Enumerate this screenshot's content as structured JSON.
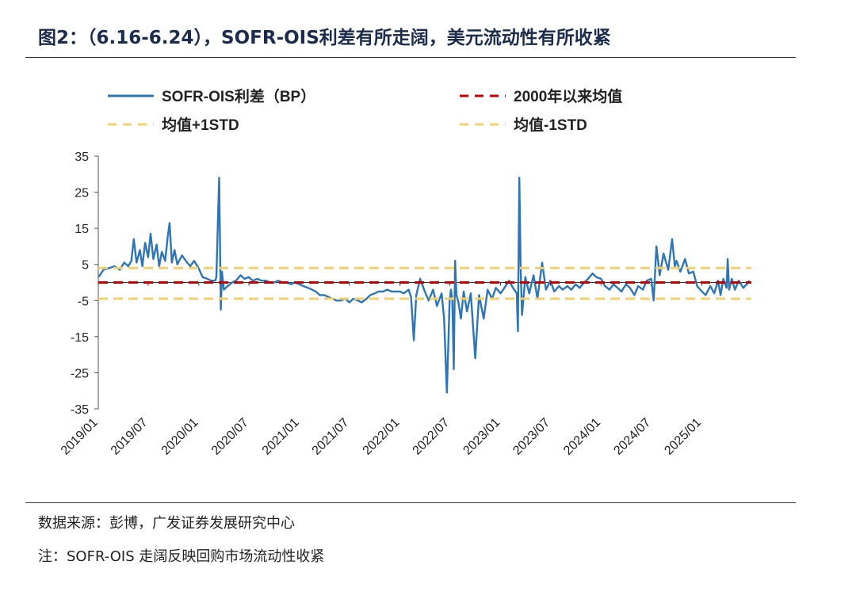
{
  "header": {
    "title": "图2：（6.16-6.24），SOFR-OIS利差有所走阔，美元流动性有所收紧"
  },
  "footer": {
    "source": "数据来源：彭博，广发证券发展研究中心",
    "note": "注：SOFR-OIS 走阔反映回购市场流动性收紧"
  },
  "chart_data": {
    "type": "line",
    "title": "",
    "xlabel": "",
    "ylabel": "",
    "ylim": [
      -35,
      35
    ],
    "yticks": [
      35,
      25,
      15,
      5,
      -5,
      -15,
      -25,
      -35
    ],
    "xticks": [
      "2019/01",
      "2019/07",
      "2020/01",
      "2020/07",
      "2021/01",
      "2021/07",
      "2022/01",
      "2022/07",
      "2023/01",
      "2023/07",
      "2024/01",
      "2024/07",
      "2025/01"
    ],
    "x_range": [
      "2019/01",
      "2025/06"
    ],
    "legend_position": "top",
    "grid": false,
    "series": [
      {
        "name": "SOFR-OIS利差（BP）",
        "style": "solid",
        "color": "#2e75b6",
        "points": [
          [
            "2019/01/02",
            1.5
          ],
          [
            "2019/01/20",
            3.5
          ],
          [
            "2019/02/10",
            4.0
          ],
          [
            "2019/03/01",
            4.5
          ],
          [
            "2019/03/20",
            3.5
          ],
          [
            "2019/04/05",
            5.5
          ],
          [
            "2019/04/20",
            4.5
          ],
          [
            "2019/05/01",
            6.0
          ],
          [
            "2019/05/10",
            12.0
          ],
          [
            "2019/05/20",
            5.5
          ],
          [
            "2019/06/01",
            9.0
          ],
          [
            "2019/06/10",
            4.5
          ],
          [
            "2019/06/20",
            11.0
          ],
          [
            "2019/07/01",
            7.0
          ],
          [
            "2019/07/10",
            13.5
          ],
          [
            "2019/07/20",
            6.5
          ],
          [
            "2019/08/01",
            10.5
          ],
          [
            "2019/08/10",
            4.5
          ],
          [
            "2019/08/20",
            8.5
          ],
          [
            "2019/09/01",
            6.0
          ],
          [
            "2019/09/10",
            12.5
          ],
          [
            "2019/09/17",
            16.5
          ],
          [
            "2019/09/25",
            5.5
          ],
          [
            "2019/10/05",
            9.0
          ],
          [
            "2019/10/15",
            5.0
          ],
          [
            "2019/11/01",
            7.5
          ],
          [
            "2019/11/15",
            6.0
          ],
          [
            "2019/12/01",
            4.5
          ],
          [
            "2019/12/15",
            6.0
          ],
          [
            "2019/12/31",
            4.0
          ],
          [
            "2020/01/15",
            1.5
          ],
          [
            "2020/02/01",
            1.0
          ],
          [
            "2020/02/15",
            0.5
          ],
          [
            "2020/03/01",
            0.5
          ],
          [
            "2020/03/05",
            1.5
          ],
          [
            "2020/03/10",
            16.0
          ],
          [
            "2020/03/15",
            29.0
          ],
          [
            "2020/03/18",
            12.0
          ],
          [
            "2020/03/21",
            -7.5
          ],
          [
            "2020/03/25",
            3.0
          ],
          [
            "2020/04/01",
            -2.0
          ],
          [
            "2020/04/15",
            -1.0
          ],
          [
            "2020/05/01",
            0.0
          ],
          [
            "2020/05/15",
            0.5
          ],
          [
            "2020/06/01",
            2.0
          ],
          [
            "2020/06/15",
            1.0
          ],
          [
            "2020/07/01",
            1.5
          ],
          [
            "2020/07/15",
            0.5
          ],
          [
            "2020/08/01",
            1.0
          ],
          [
            "2020/08/15",
            0.5
          ],
          [
            "2020/09/01",
            0.5
          ],
          [
            "2020/09/15",
            0.0
          ],
          [
            "2020/10/01",
            0.0
          ],
          [
            "2020/10/15",
            0.5
          ],
          [
            "2020/11/01",
            0.0
          ],
          [
            "2020/11/15",
            0.0
          ],
          [
            "2020/12/01",
            -0.5
          ],
          [
            "2020/12/15",
            0.0
          ],
          [
            "2021/01/01",
            -0.5
          ],
          [
            "2021/01/15",
            -1.0
          ],
          [
            "2021/02/01",
            -1.5
          ],
          [
            "2021/02/15",
            -2.0
          ],
          [
            "2021/03/01",
            -2.5
          ],
          [
            "2021/03/15",
            -3.5
          ],
          [
            "2021/04/01",
            -3.5
          ],
          [
            "2021/04/15",
            -4.0
          ],
          [
            "2021/05/01",
            -4.5
          ],
          [
            "2021/05/15",
            -5.0
          ],
          [
            "2021/06/01",
            -5.0
          ],
          [
            "2021/06/15",
            -4.5
          ],
          [
            "2021/07/01",
            -5.5
          ],
          [
            "2021/07/15",
            -4.5
          ],
          [
            "2021/08/01",
            -5.0
          ],
          [
            "2021/08/15",
            -5.5
          ],
          [
            "2021/09/01",
            -4.5
          ],
          [
            "2021/09/15",
            -3.5
          ],
          [
            "2021/10/01",
            -3.0
          ],
          [
            "2021/10/15",
            -2.5
          ],
          [
            "2021/11/01",
            -2.5
          ],
          [
            "2021/11/15",
            -2.0
          ],
          [
            "2021/12/01",
            -2.5
          ],
          [
            "2021/12/15",
            -2.5
          ],
          [
            "2022/01/01",
            -2.5
          ],
          [
            "2022/01/15",
            -3.0
          ],
          [
            "2022/02/01",
            -2.0
          ],
          [
            "2022/02/10",
            -4.0
          ],
          [
            "2022/02/20",
            -16.0
          ],
          [
            "2022/03/01",
            -3.5
          ],
          [
            "2022/03/15",
            1.0
          ],
          [
            "2022/04/01",
            -2.5
          ],
          [
            "2022/04/15",
            -5.0
          ],
          [
            "2022/05/01",
            -2.0
          ],
          [
            "2022/05/15",
            -6.5
          ],
          [
            "2022/06/01",
            -3.0
          ],
          [
            "2022/06/10",
            -10.0
          ],
          [
            "2022/06/20",
            -30.5
          ],
          [
            "2022/06/30",
            -5.0
          ],
          [
            "2022/07/05",
            -2.0
          ],
          [
            "2022/07/10",
            -5.0
          ],
          [
            "2022/07/15",
            -24.0
          ],
          [
            "2022/07/20",
            6.0
          ],
          [
            "2022/07/25",
            -3.5
          ],
          [
            "2022/08/01",
            -5.5
          ],
          [
            "2022/08/10",
            -10.0
          ],
          [
            "2022/08/20",
            -2.5
          ],
          [
            "2022/09/01",
            -8.0
          ],
          [
            "2022/09/15",
            -3.0
          ],
          [
            "2022/10/01",
            -21.0
          ],
          [
            "2022/10/15",
            -3.5
          ],
          [
            "2022/11/01",
            -10.0
          ],
          [
            "2022/11/15",
            -2.0
          ],
          [
            "2022/12/01",
            -4.5
          ],
          [
            "2022/12/15",
            -1.5
          ],
          [
            "2023/01/01",
            -3.0
          ],
          [
            "2023/01/15",
            -1.5
          ],
          [
            "2023/02/01",
            0.5
          ],
          [
            "2023/02/15",
            -1.5
          ],
          [
            "2023/03/01",
            -3.0
          ],
          [
            "2023/03/05",
            -13.5
          ],
          [
            "2023/03/10",
            29.0
          ],
          [
            "2023/03/15",
            4.0
          ],
          [
            "2023/03/20",
            -9.0
          ],
          [
            "2023/04/01",
            1.5
          ],
          [
            "2023/04/15",
            -3.0
          ],
          [
            "2023/05/01",
            2.0
          ],
          [
            "2023/05/15",
            -4.5
          ],
          [
            "2023/06/01",
            5.5
          ],
          [
            "2023/06/15",
            -2.0
          ],
          [
            "2023/07/01",
            0.5
          ],
          [
            "2023/07/15",
            -2.5
          ],
          [
            "2023/08/01",
            -1.0
          ],
          [
            "2023/08/15",
            -2.0
          ],
          [
            "2023/09/01",
            -1.0
          ],
          [
            "2023/09/15",
            -2.0
          ],
          [
            "2023/10/01",
            -0.5
          ],
          [
            "2023/10/15",
            -1.5
          ],
          [
            "2023/11/01",
            0.0
          ],
          [
            "2023/11/15",
            1.0
          ],
          [
            "2023/12/01",
            2.5
          ],
          [
            "2023/12/15",
            1.5
          ],
          [
            "2024/01/01",
            1.0
          ],
          [
            "2024/01/15",
            -1.0
          ],
          [
            "2024/02/01",
            -2.0
          ],
          [
            "2024/02/15",
            -0.5
          ],
          [
            "2024/03/01",
            -1.5
          ],
          [
            "2024/03/15",
            -2.5
          ],
          [
            "2024/04/01",
            -0.5
          ],
          [
            "2024/04/15",
            -1.5
          ],
          [
            "2024/05/01",
            -3.5
          ],
          [
            "2024/05/15",
            -1.0
          ],
          [
            "2024/06/01",
            -2.0
          ],
          [
            "2024/06/15",
            0.5
          ],
          [
            "2024/07/01",
            1.0
          ],
          [
            "2024/07/10",
            -5.0
          ],
          [
            "2024/07/20",
            10.0
          ],
          [
            "2024/08/01",
            2.0
          ],
          [
            "2024/08/15",
            8.0
          ],
          [
            "2024/09/01",
            3.5
          ],
          [
            "2024/09/15",
            12.0
          ],
          [
            "2024/09/25",
            4.5
          ],
          [
            "2024/10/01",
            6.0
          ],
          [
            "2024/10/15",
            3.0
          ],
          [
            "2024/11/01",
            6.5
          ],
          [
            "2024/11/15",
            2.5
          ],
          [
            "2024/12/01",
            3.0
          ],
          [
            "2024/12/15",
            -1.0
          ],
          [
            "2025/01/01",
            -2.5
          ],
          [
            "2025/01/15",
            -3.5
          ],
          [
            "2025/02/01",
            -1.0
          ],
          [
            "2025/02/15",
            -3.0
          ],
          [
            "2025/03/01",
            0.5
          ],
          [
            "2025/03/10",
            -3.5
          ],
          [
            "2025/03/20",
            1.0
          ],
          [
            "2025/04/01",
            -1.5
          ],
          [
            "2025/04/05",
            6.5
          ],
          [
            "2025/04/10",
            -2.0
          ],
          [
            "2025/04/20",
            1.0
          ],
          [
            "2025/05/01",
            -2.0
          ],
          [
            "2025/05/15",
            0.5
          ],
          [
            "2025/06/01",
            -1.5
          ],
          [
            "2025/06/24",
            0.5
          ]
        ]
      },
      {
        "name": "2000年以来均值",
        "style": "dashed",
        "color": "#c00000",
        "value": 0
      },
      {
        "name": "均值+1STD",
        "style": "dashed",
        "color": "#f0d070",
        "value": 4
      },
      {
        "name": "均值-1STD",
        "style": "dashed",
        "color": "#f0d070",
        "value": -4.5
      }
    ]
  }
}
